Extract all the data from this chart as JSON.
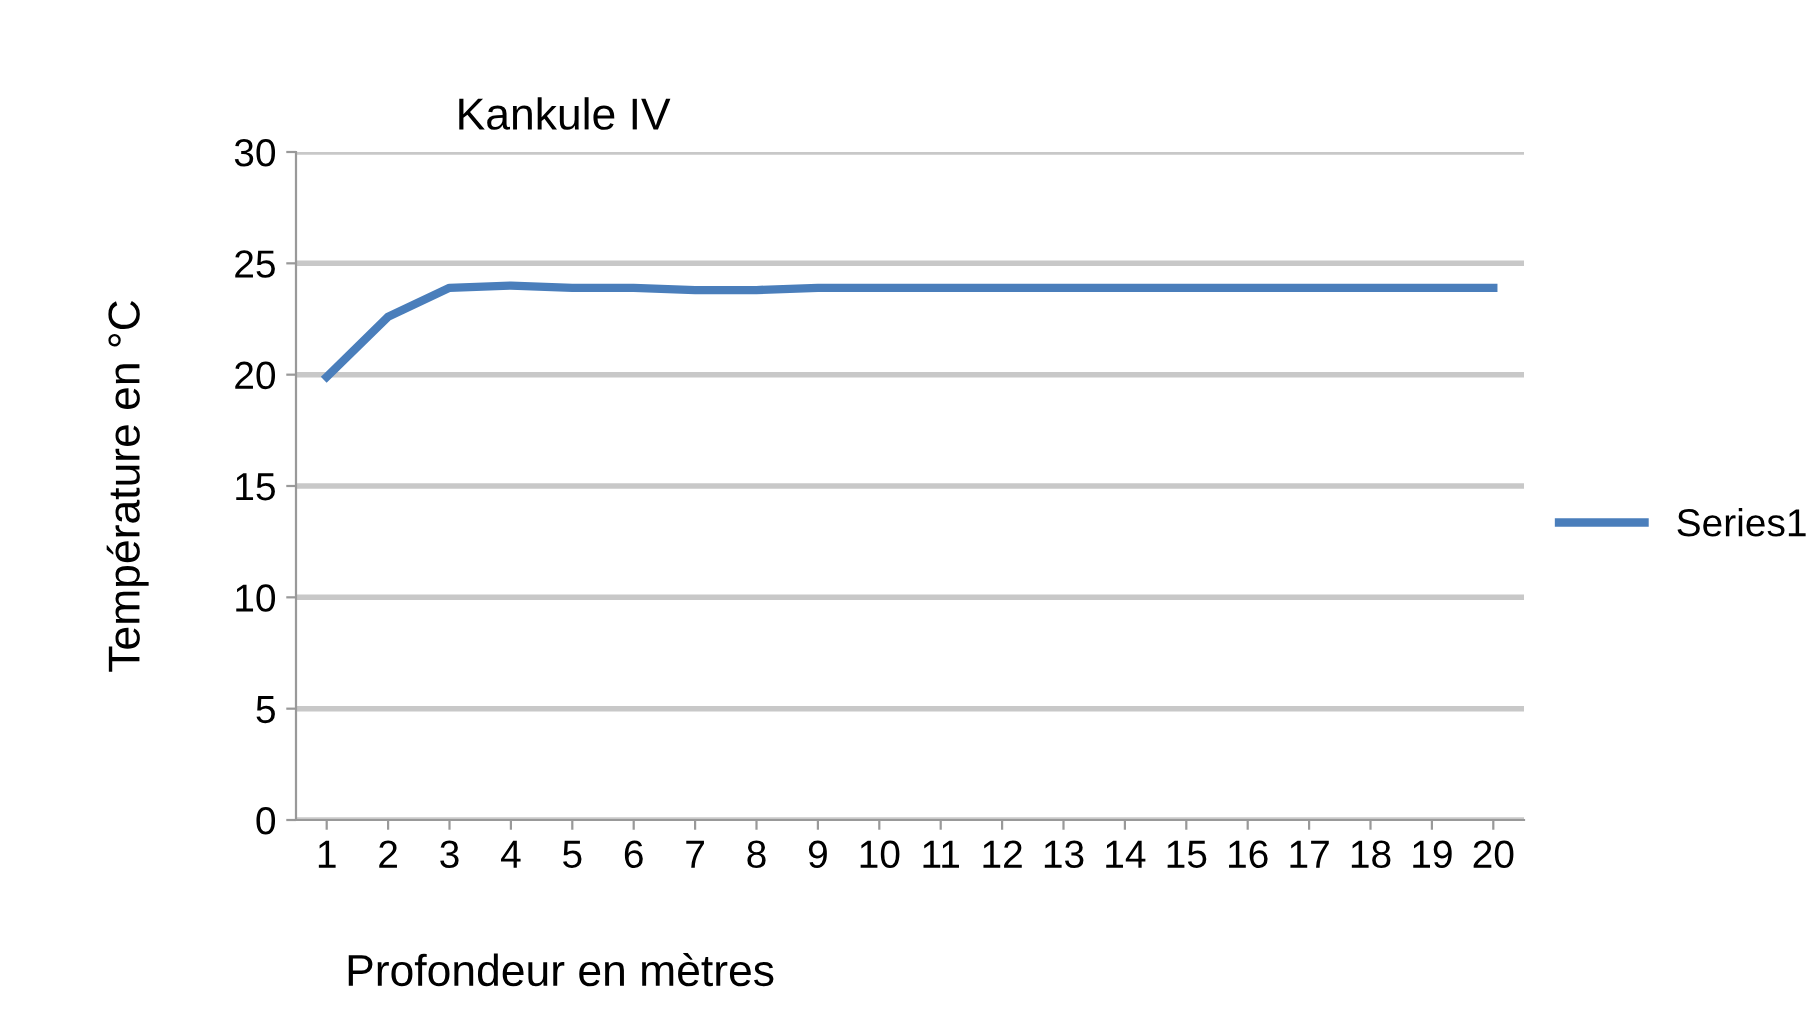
{
  "chart_data": {
    "type": "line",
    "title": "Kankule IV",
    "xlabel": "Profondeur en mètres",
    "ylabel": "Température en °C",
    "categories": [
      "1",
      "2",
      "3",
      "4",
      "5",
      "6",
      "7",
      "8",
      "9",
      "10",
      "11",
      "12",
      "13",
      "14",
      "15",
      "16",
      "17",
      "18",
      "19",
      "20"
    ],
    "series": [
      {
        "name": "Series1",
        "color": "#4a7ebb",
        "values": [
          19.9,
          22.6,
          23.9,
          24.0,
          23.9,
          23.9,
          23.8,
          23.8,
          23.9,
          23.9,
          23.9,
          23.9,
          23.9,
          23.9,
          23.9,
          23.9,
          23.9,
          23.9,
          23.9,
          23.9
        ]
      }
    ],
    "ylim": [
      0,
      30
    ],
    "yticks": [
      0,
      5,
      10,
      15,
      20,
      25,
      30
    ],
    "grid": "y",
    "legend": "right",
    "marker": "none",
    "line_style": "solid"
  }
}
